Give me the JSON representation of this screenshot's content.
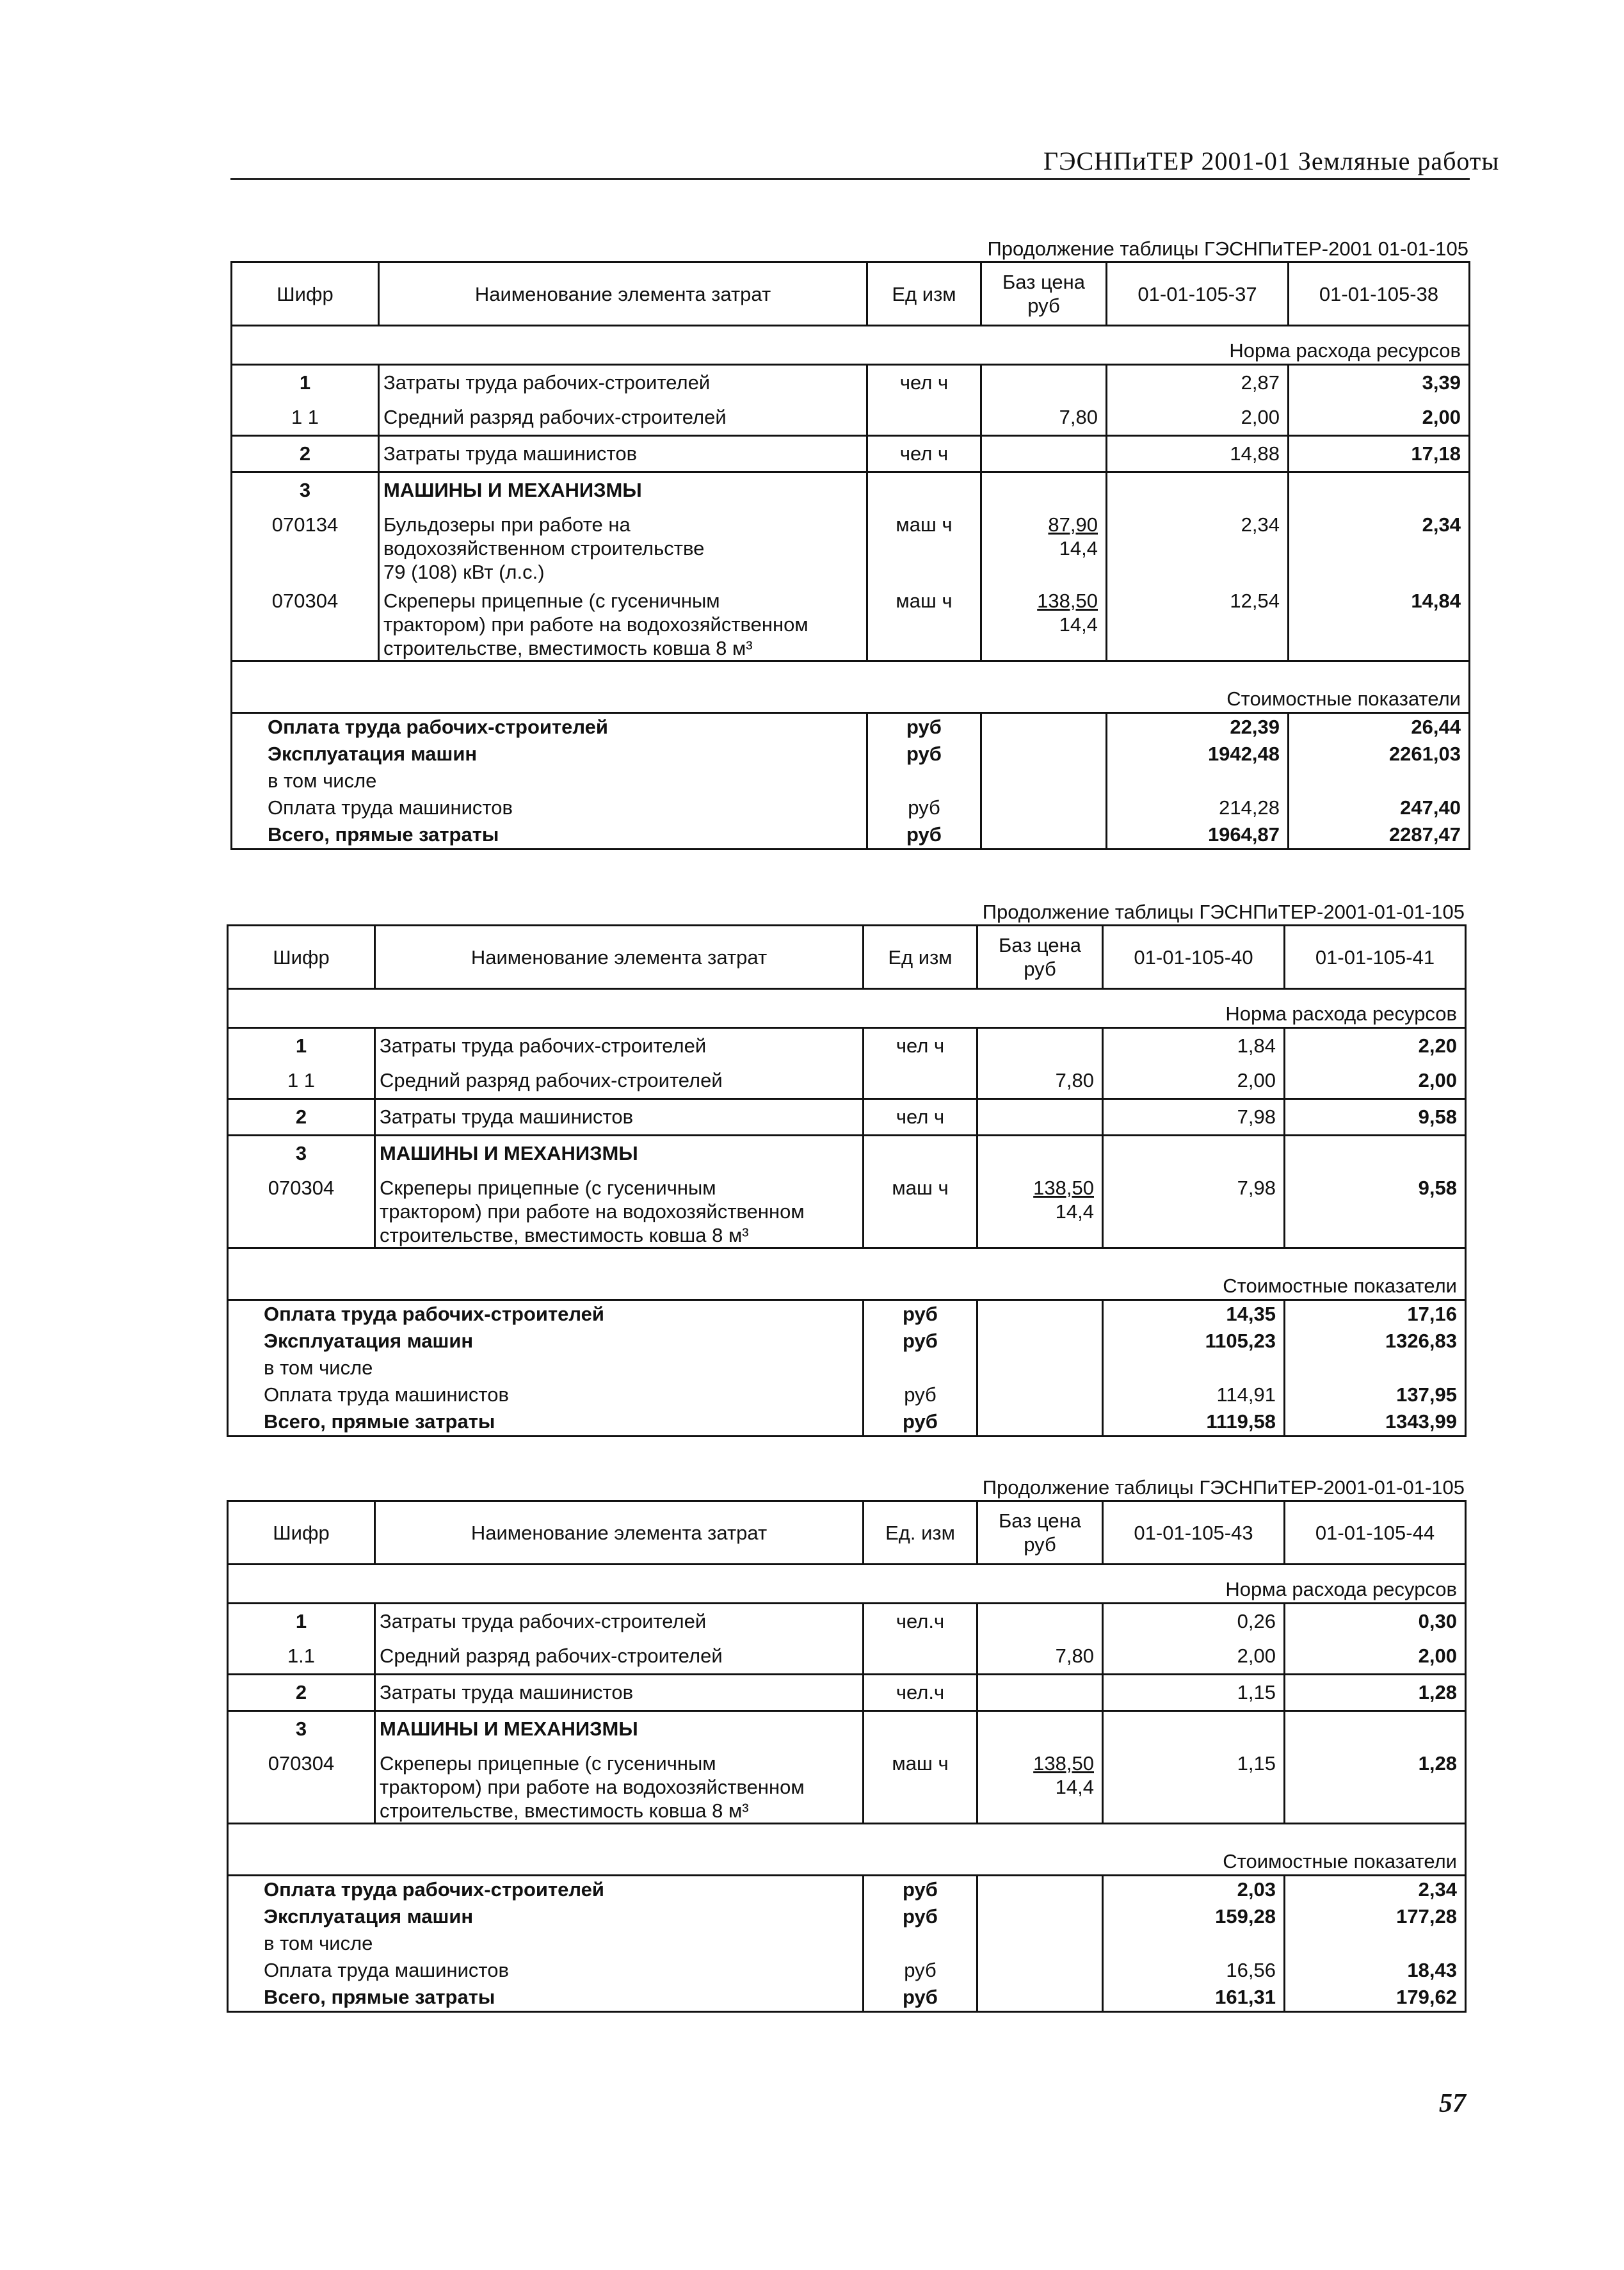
{
  "running_head": "ГЭСНПиТЕР 2001-01 Земляные работы",
  "page_number": "57",
  "tables": [
    {
      "caption": "Продолжение таблицы ГЭСНПиТЕР-2001 01-01-105",
      "header": {
        "code": "Шифр",
        "name": "Наименование элемента затрат",
        "unit": "Ед изм",
        "price": "Баз цена\nруб",
        "col1": "01-01-105-37",
        "col2": "01-01-105-38"
      },
      "norm_label": "Норма расхода ресурсов",
      "rows": [
        {
          "code": "1",
          "name": "Затраты труда рабочих-строителей",
          "unit": "чел ч",
          "price": "",
          "price2": "",
          "v1": "2,87",
          "v2": "3,39",
          "bold_code": true,
          "sep": false
        },
        {
          "code": "1 1",
          "name": "Средний разряд рабочих-строителей",
          "unit": "",
          "price": "7,80",
          "price2": "",
          "v1": "2,00",
          "v2": "2,00",
          "bold_code": false,
          "sep": false
        },
        {
          "code": "2",
          "name": "Затраты труда машинистов",
          "unit": "чел ч",
          "price": "",
          "price2": "",
          "v1": "14,88",
          "v2": "17,18",
          "bold_code": true,
          "sep": true
        },
        {
          "code": "3",
          "name": "МАШИНЫ И МЕХАНИЗМЫ",
          "unit": "",
          "price": "",
          "price2": "",
          "v1": "",
          "v2": "",
          "bold_code": true,
          "bold_name": true,
          "sep": true
        },
        {
          "code": "070134",
          "name": "Бульдозеры при работе на\nводохозяйственном строительстве\n79 (108) кВт (л.с.)",
          "unit": "маш ч",
          "price": "87,90",
          "price2": "14,4",
          "v1": "2,34",
          "v2": "2,34",
          "bold_code": false,
          "sep": false
        },
        {
          "code": "070304",
          "name": "Скреперы прицепные (с гусеничным\nтрактором) при работе на водохозяйственном\nстроительстве, вместимость ковша 8 м³",
          "unit": "маш ч",
          "price": "138,50",
          "price2": "14,4",
          "v1": "12,54",
          "v2": "14,84",
          "bold_code": false,
          "sep": false
        }
      ],
      "cost_label": "Стоимостные показатели",
      "costs": [
        {
          "name": "Оплата труда рабочих-строителей",
          "unit": "руб",
          "v1": "22,39",
          "v2": "26,44",
          "bold": true
        },
        {
          "name": "Эксплуатация машин",
          "unit": "руб",
          "v1": "1942,48",
          "v2": "2261,03",
          "bold": true
        },
        {
          "name": "в том числе",
          "unit": "",
          "v1": "",
          "v2": "",
          "bold": false
        },
        {
          "name": "Оплата труда машинистов",
          "unit": "руб",
          "v1": "214,28",
          "v2": "247,40",
          "bold": false
        },
        {
          "name": "Всего, прямые затраты",
          "unit": "руб",
          "v1": "1964,87",
          "v2": "2287,47",
          "bold": true
        }
      ]
    },
    {
      "caption": "Продолжение таблицы ГЭСНПиТЕР-2001-01-01-105",
      "header": {
        "code": "Шифр",
        "name": "Наименование элемента затрат",
        "unit": "Ед изм",
        "price": "Баз цена\nруб",
        "col1": "01-01-105-40",
        "col2": "01-01-105-41"
      },
      "norm_label": "Норма расхода ресурсов",
      "rows": [
        {
          "code": "1",
          "name": "Затраты труда рабочих-строителей",
          "unit": "чел ч",
          "price": "",
          "price2": "",
          "v1": "1,84",
          "v2": "2,20",
          "bold_code": true,
          "sep": false
        },
        {
          "code": "1 1",
          "name": "Средний разряд рабочих-строителей",
          "unit": "",
          "price": "7,80",
          "price2": "",
          "v1": "2,00",
          "v2": "2,00",
          "bold_code": false,
          "sep": false
        },
        {
          "code": "2",
          "name": "Затраты труда машинистов",
          "unit": "чел ч",
          "price": "",
          "price2": "",
          "v1": "7,98",
          "v2": "9,58",
          "bold_code": true,
          "sep": true
        },
        {
          "code": "3",
          "name": "МАШИНЫ И МЕХАНИЗМЫ",
          "unit": "",
          "price": "",
          "price2": "",
          "v1": "",
          "v2": "",
          "bold_code": true,
          "bold_name": true,
          "sep": true
        },
        {
          "code": "070304",
          "name": "Скреперы прицепные (с гусеничным\nтрактором) при работе на водохозяйственном\nстроительстве, вместимость ковша 8 м³",
          "unit": "маш ч",
          "price": "138,50",
          "price2": "14,4",
          "v1": "7,98",
          "v2": "9,58",
          "bold_code": false,
          "sep": false
        }
      ],
      "cost_label": "Стоимостные показатели",
      "costs": [
        {
          "name": "Оплата труда рабочих-строителей",
          "unit": "руб",
          "v1": "14,35",
          "v2": "17,16",
          "bold": true
        },
        {
          "name": "Эксплуатация машин",
          "unit": "руб",
          "v1": "1105,23",
          "v2": "1326,83",
          "bold": true
        },
        {
          "name": "в том числе",
          "unit": "",
          "v1": "",
          "v2": "",
          "bold": false
        },
        {
          "name": "Оплата труда машинистов",
          "unit": "руб",
          "v1": "114,91",
          "v2": "137,95",
          "bold": false
        },
        {
          "name": "Всего, прямые затраты",
          "unit": "руб",
          "v1": "1119,58",
          "v2": "1343,99",
          "bold": true
        }
      ]
    },
    {
      "caption": "Продолжение таблицы ГЭСНПиТЕР-2001-01-01-105",
      "header": {
        "code": "Шифр",
        "name": "Наименование элемента затрат",
        "unit": "Ед. изм",
        "price": "Баз цена\nруб",
        "col1": "01-01-105-43",
        "col2": "01-01-105-44"
      },
      "norm_label": "Норма расхода ресурсов",
      "rows": [
        {
          "code": "1",
          "name": "Затраты труда рабочих-строителей",
          "unit": "чел.ч",
          "price": "",
          "price2": "",
          "v1": "0,26",
          "v2": "0,30",
          "bold_code": true,
          "sep": false
        },
        {
          "code": "1.1",
          "name": "Средний разряд рабочих-строителей",
          "unit": "",
          "price": "7,80",
          "price2": "",
          "v1": "2,00",
          "v2": "2,00",
          "bold_code": false,
          "sep": false
        },
        {
          "code": "2",
          "name": "Затраты труда машинистов",
          "unit": "чел.ч",
          "price": "",
          "price2": "",
          "v1": "1,15",
          "v2": "1,28",
          "bold_code": true,
          "sep": true
        },
        {
          "code": "3",
          "name": "МАШИНЫ И МЕХАНИЗМЫ",
          "unit": "",
          "price": "",
          "price2": "",
          "v1": "",
          "v2": "",
          "bold_code": true,
          "bold_name": true,
          "sep": true
        },
        {
          "code": "070304",
          "name": "Скреперы прицепные (с гусеничным\nтрактором) при работе на водохозяйственном\nстроительстве, вместимость ковша 8 м³",
          "unit": "маш ч",
          "price": "138,50",
          "price2": "14,4",
          "v1": "1,15",
          "v2": "1,28",
          "bold_code": false,
          "sep": false
        }
      ],
      "cost_label": "Стоимостные показатели",
      "costs": [
        {
          "name": "Оплата труда рабочих-строителей",
          "unit": "руб",
          "v1": "2,03",
          "v2": "2,34",
          "bold": true
        },
        {
          "name": "Эксплуатация машин",
          "unit": "руб",
          "v1": "159,28",
          "v2": "177,28",
          "bold": true
        },
        {
          "name": "в том числе",
          "unit": "",
          "v1": "",
          "v2": "",
          "bold": false
        },
        {
          "name": "Оплата труда машинистов",
          "unit": "руб",
          "v1": "16,56",
          "v2": "18,43",
          "bold": false
        },
        {
          "name": "Всего, прямые затраты",
          "unit": "руб",
          "v1": "161,31",
          "v2": "179,62",
          "bold": true
        }
      ]
    }
  ]
}
